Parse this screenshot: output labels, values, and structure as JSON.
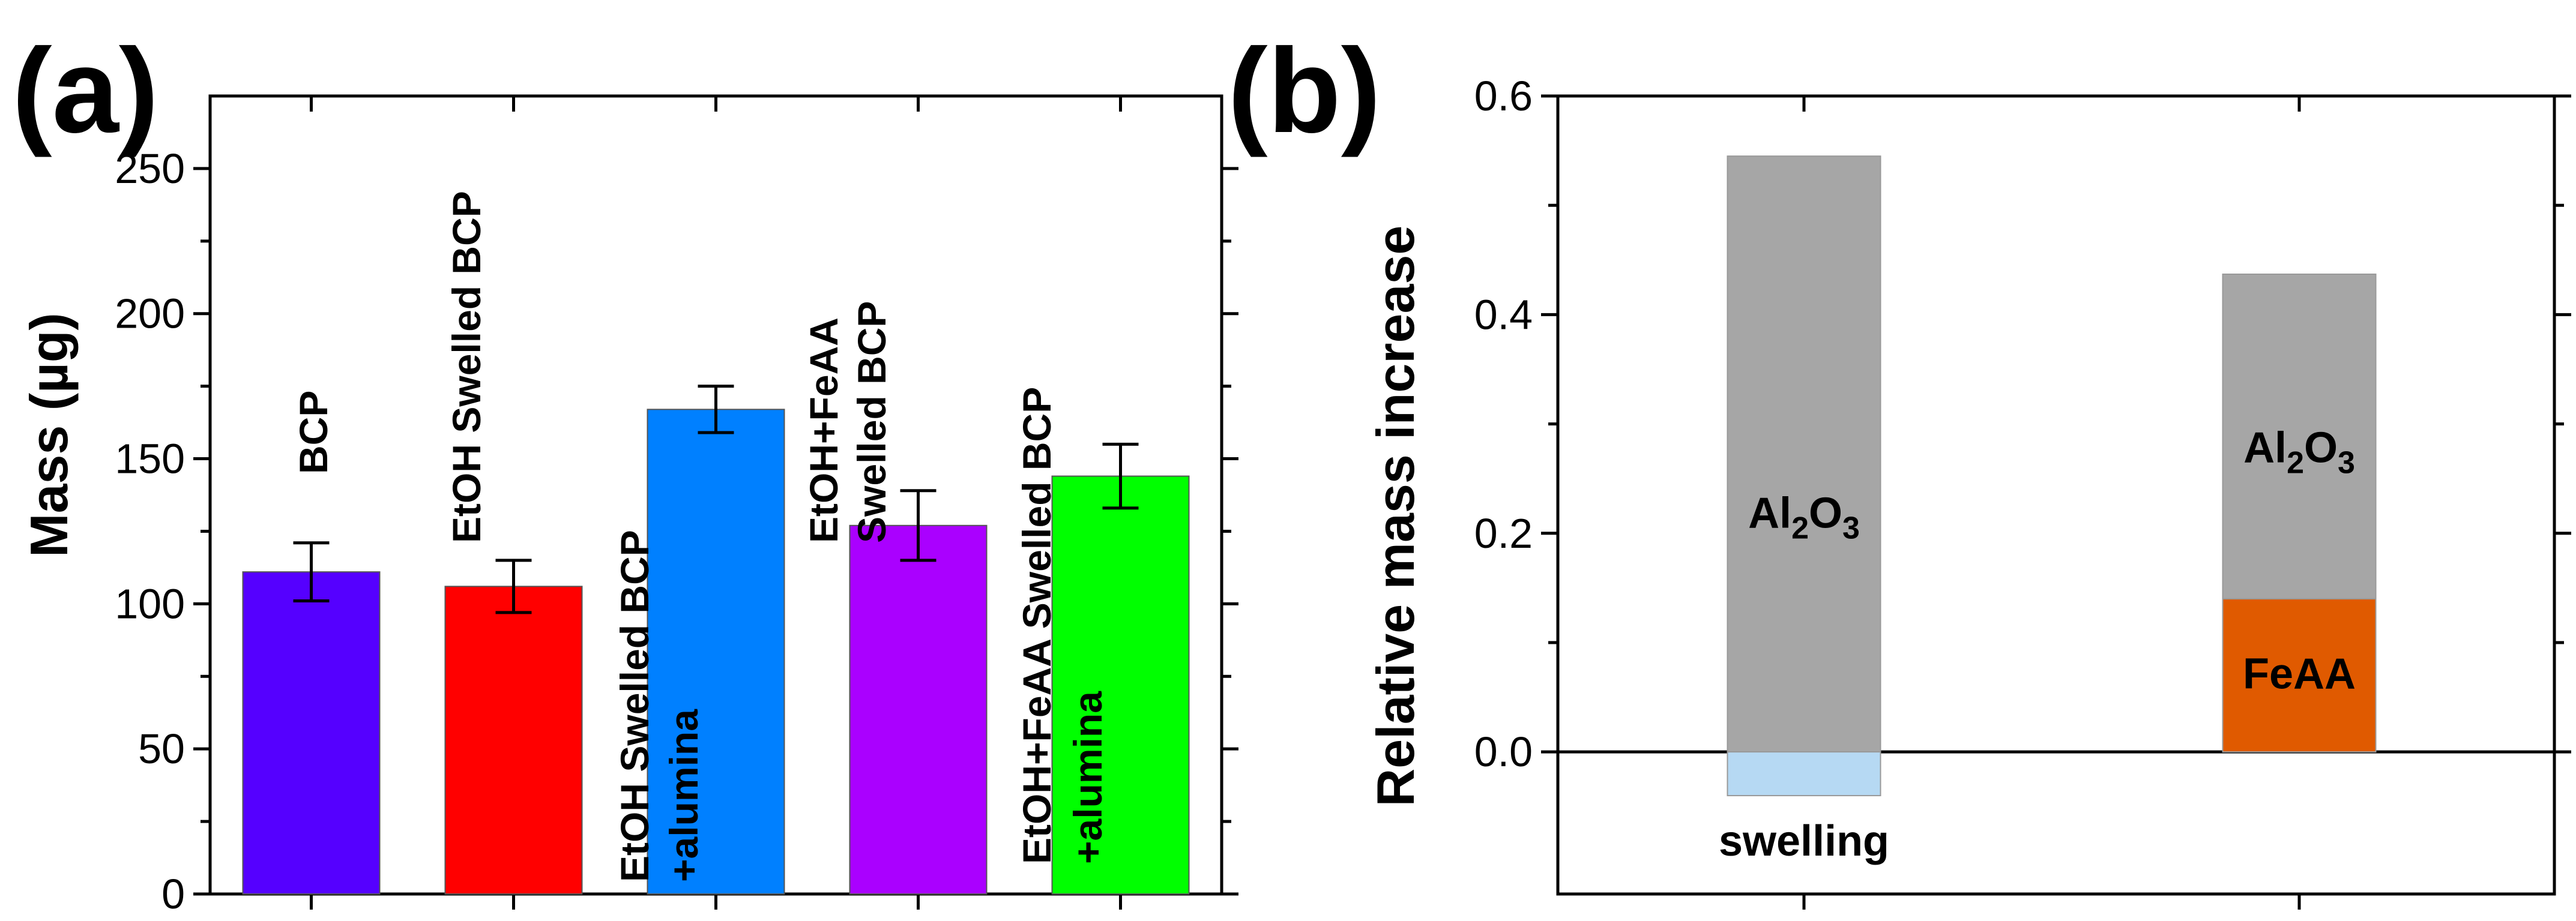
{
  "chart_data": [
    {
      "panel_label": "(a)",
      "type": "bar",
      "ylabel": "Mass (µg)",
      "xlabel": "",
      "ylim": [
        0,
        275
      ],
      "yticks": [
        0,
        50,
        100,
        150,
        200,
        250
      ],
      "ytick_labels": [
        "0",
        "50",
        "100",
        "150",
        "200",
        "250"
      ],
      "bars": [
        {
          "label_lines": [
            "BCP"
          ],
          "value": 111,
          "error": 10,
          "color": "#5500ff"
        },
        {
          "label_lines": [
            "EtOH Swelled BCP"
          ],
          "value": 106,
          "error": 9,
          "color": "#ff0000"
        },
        {
          "label_lines": [
            "EtOH Swelled BCP",
            "+alumina"
          ],
          "value": 167,
          "error": 8,
          "color": "#0080ff"
        },
        {
          "label_lines": [
            "EtOH+FeAA",
            "Swelled BCP"
          ],
          "value": 127,
          "error": 12,
          "color": "#aa00ff"
        },
        {
          "label_lines": [
            "EtOH+FeAA Swelled BCP",
            "+alumina"
          ],
          "value": 144,
          "error": 11,
          "color": "#00ff00"
        }
      ]
    },
    {
      "panel_label": "(b)",
      "type": "bar",
      "ylabel": "Relative mass increase",
      "ylim": [
        -0.13,
        0.6
      ],
      "yticks": [
        0.0,
        0.2,
        0.4,
        0.6
      ],
      "ytick_labels": [
        "0.0",
        "0.2",
        "0.4",
        "0.6"
      ],
      "segments": [
        {
          "bar": 1,
          "name": "Al2O3",
          "from": 0.0,
          "to": 0.545,
          "color": "#a6a6a6"
        },
        {
          "bar": 1,
          "name": "swelling",
          "from": -0.04,
          "to": 0.0,
          "color": "#b6d9f3"
        },
        {
          "bar": 2,
          "name": "Al2O3",
          "from": 0.0,
          "to": 0.437,
          "color": "#a6a6a6"
        },
        {
          "bar": 2,
          "name": "FeAA",
          "from": 0.0,
          "to": 0.14,
          "color": "#e05a00"
        }
      ],
      "annotations": {
        "al2o3_base": "Al",
        "al2o3_sub1": "2",
        "al2o3_mid": "O",
        "al2o3_sub2": "3",
        "swelling": "swelling",
        "feaa": "FeAA"
      }
    }
  ]
}
